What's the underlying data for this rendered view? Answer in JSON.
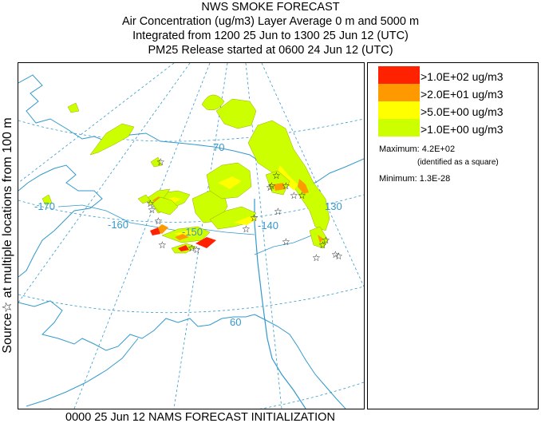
{
  "header": {
    "title": "NWS SMOKE FORECAST",
    "line2": "Air Concentration (ug/m3) Layer Average    0 m and  5000 m",
    "line3": "Integrated from 1200 25 Jun to 1300 25 Jun 12 (UTC)",
    "line4": "PM25 Release started at 0600 24 Jun 12 (UTC)"
  },
  "side_label": "Source☆ at multiple locations   from   100 m",
  "map": {
    "longitude_labels": [
      "-170",
      "-160",
      "-150",
      "-140",
      "130"
    ],
    "latitude_labels": [
      "70",
      "60"
    ],
    "colors": {
      "coast": "#3399cc",
      "grid": "#3399cc",
      "border": "#3399cc"
    }
  },
  "legend": {
    "entries": [
      {
        "label": ">1.0E+02 ug/m3",
        "color": "#ff2200"
      },
      {
        "label": ">2.0E+01 ug/m3",
        "color": "#ff9900"
      },
      {
        "label": ">5.0E+00 ug/m3",
        "color": "#ffff00"
      },
      {
        "label": ">1.0E+00 ug/m3",
        "color": "#ccff00"
      }
    ],
    "maximum": "Maximum: 4.2E+02",
    "maximum_note": "(identified as a square)",
    "minimum": "Minimum: 1.3E-28"
  },
  "footer": "0000 25 Jun 12 NAMS FORECAST INITIALIZATION"
}
